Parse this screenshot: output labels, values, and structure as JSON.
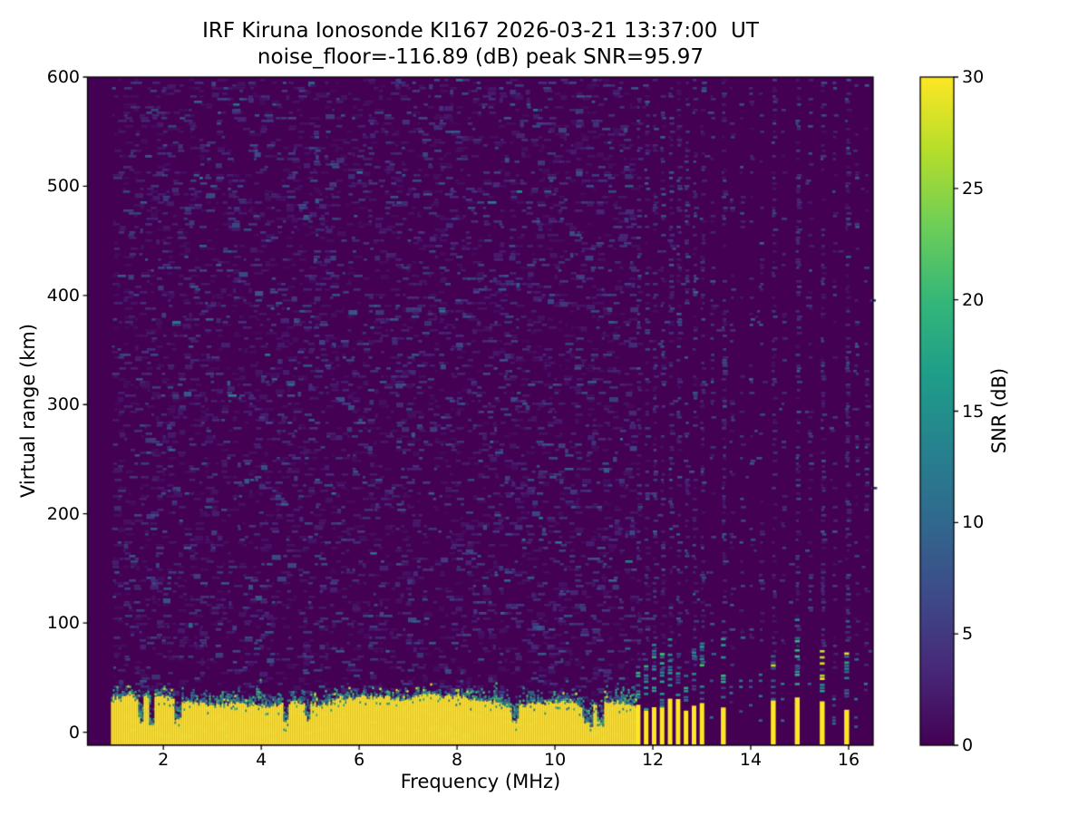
{
  "chart_data": {
    "type": "heatmap",
    "title_line1": "IRF Kiruna Ionosonde KI167 2026-03-21 13:37:00  UT",
    "title_line2": "noise_floor=-116.89 (dB) peak SNR=95.97",
    "station": "IRF Kiruna",
    "instrument": "Ionosonde KI167",
    "timestamp_ut": "2026-03-21 13:37:00",
    "noise_floor_db": -116.89,
    "peak_snr_db": 95.97,
    "xlabel": "Frequency (MHz)",
    "ylabel": "Virtual range (km)",
    "x_ticks": [
      2,
      4,
      6,
      8,
      10,
      12,
      14,
      16
    ],
    "y_ticks": [
      0,
      100,
      200,
      300,
      400,
      500,
      600
    ],
    "xlim": [
      0.45,
      16.5
    ],
    "ylim": [
      -12,
      600
    ],
    "grid": false,
    "colorbar": {
      "label": "SNR (dB)",
      "ticks": [
        0,
        5,
        10,
        15,
        20,
        25,
        30
      ],
      "min": 0,
      "max": 30,
      "colormap": "viridis",
      "position": "right"
    },
    "colormap_stops": [
      "#440154",
      "#482878",
      "#3e4a89",
      "#31688e",
      "#26828e",
      "#1f9e89",
      "#35b779",
      "#6ece58",
      "#b5de2b",
      "#fde725"
    ],
    "content": {
      "description": "Ionogram: SNR (0-30 dB, viridis) vs frequency sweep and virtual range. Dark purple noise background with sparse faint speckles; saturated yellow ground-clutter band at 0-35 km from sweep start to ~11.67 MHz with ragged green/teal top up to ~45 km and occasional narrow notches; above 11.67 MHz the band breaks into a comb of vertical RFI stripes plus isolated strong lines, with faint vertical noise columns extending to 600 km.",
      "sweep_start_mhz": 0.93,
      "background_noise": {
        "db_min": 0,
        "db_max": 9,
        "speckle_density": 0.21
      },
      "ground_clutter_band": {
        "freq_start_mhz": 0.93,
        "freq_end_mhz": 11.67,
        "solid_top_km_min": 22,
        "solid_top_km_max": 35,
        "ragged_top_km": 45,
        "value_db": 30,
        "notch_min_km": 4
      },
      "rfi_comb": {
        "start_mhz": 11.7,
        "step_mhz": 0.163,
        "count": 9,
        "base_top_km_min": 18,
        "base_top_km_max": 32
      },
      "rfi_lines_mhz": [
        13.44,
        14.46,
        14.95,
        15.46,
        15.96
      ],
      "faint_noise_columns_mhz": [
        13.2,
        13.6,
        13.8,
        14.0,
        14.2,
        14.65,
        15.2,
        15.7,
        16.15,
        16.35
      ]
    }
  }
}
